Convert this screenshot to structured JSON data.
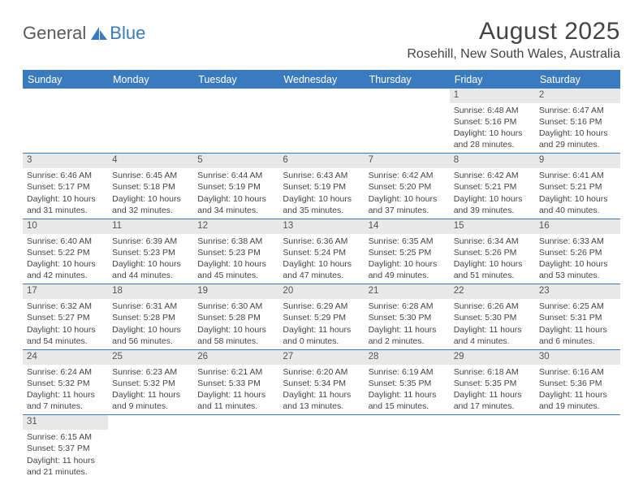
{
  "logo": {
    "part1": "General",
    "part2": "Blue"
  },
  "title": "August 2025",
  "location": "Rosehill, New South Wales, Australia",
  "colors": {
    "header_bg": "#3a7bbf",
    "header_fg": "#ffffff",
    "daynum_bg": "#e8e8e8",
    "cell_border": "#3a7bbf",
    "text": "#444444"
  },
  "weekdays": [
    "Sunday",
    "Monday",
    "Tuesday",
    "Wednesday",
    "Thursday",
    "Friday",
    "Saturday"
  ],
  "weeks": [
    [
      null,
      null,
      null,
      null,
      null,
      {
        "n": "1",
        "sr": "Sunrise: 6:48 AM",
        "ss": "Sunset: 5:16 PM",
        "dl1": "Daylight: 10 hours",
        "dl2": "and 28 minutes."
      },
      {
        "n": "2",
        "sr": "Sunrise: 6:47 AM",
        "ss": "Sunset: 5:16 PM",
        "dl1": "Daylight: 10 hours",
        "dl2": "and 29 minutes."
      }
    ],
    [
      {
        "n": "3",
        "sr": "Sunrise: 6:46 AM",
        "ss": "Sunset: 5:17 PM",
        "dl1": "Daylight: 10 hours",
        "dl2": "and 31 minutes."
      },
      {
        "n": "4",
        "sr": "Sunrise: 6:45 AM",
        "ss": "Sunset: 5:18 PM",
        "dl1": "Daylight: 10 hours",
        "dl2": "and 32 minutes."
      },
      {
        "n": "5",
        "sr": "Sunrise: 6:44 AM",
        "ss": "Sunset: 5:19 PM",
        "dl1": "Daylight: 10 hours",
        "dl2": "and 34 minutes."
      },
      {
        "n": "6",
        "sr": "Sunrise: 6:43 AM",
        "ss": "Sunset: 5:19 PM",
        "dl1": "Daylight: 10 hours",
        "dl2": "and 35 minutes."
      },
      {
        "n": "7",
        "sr": "Sunrise: 6:42 AM",
        "ss": "Sunset: 5:20 PM",
        "dl1": "Daylight: 10 hours",
        "dl2": "and 37 minutes."
      },
      {
        "n": "8",
        "sr": "Sunrise: 6:42 AM",
        "ss": "Sunset: 5:21 PM",
        "dl1": "Daylight: 10 hours",
        "dl2": "and 39 minutes."
      },
      {
        "n": "9",
        "sr": "Sunrise: 6:41 AM",
        "ss": "Sunset: 5:21 PM",
        "dl1": "Daylight: 10 hours",
        "dl2": "and 40 minutes."
      }
    ],
    [
      {
        "n": "10",
        "sr": "Sunrise: 6:40 AM",
        "ss": "Sunset: 5:22 PM",
        "dl1": "Daylight: 10 hours",
        "dl2": "and 42 minutes."
      },
      {
        "n": "11",
        "sr": "Sunrise: 6:39 AM",
        "ss": "Sunset: 5:23 PM",
        "dl1": "Daylight: 10 hours",
        "dl2": "and 44 minutes."
      },
      {
        "n": "12",
        "sr": "Sunrise: 6:38 AM",
        "ss": "Sunset: 5:23 PM",
        "dl1": "Daylight: 10 hours",
        "dl2": "and 45 minutes."
      },
      {
        "n": "13",
        "sr": "Sunrise: 6:36 AM",
        "ss": "Sunset: 5:24 PM",
        "dl1": "Daylight: 10 hours",
        "dl2": "and 47 minutes."
      },
      {
        "n": "14",
        "sr": "Sunrise: 6:35 AM",
        "ss": "Sunset: 5:25 PM",
        "dl1": "Daylight: 10 hours",
        "dl2": "and 49 minutes."
      },
      {
        "n": "15",
        "sr": "Sunrise: 6:34 AM",
        "ss": "Sunset: 5:26 PM",
        "dl1": "Daylight: 10 hours",
        "dl2": "and 51 minutes."
      },
      {
        "n": "16",
        "sr": "Sunrise: 6:33 AM",
        "ss": "Sunset: 5:26 PM",
        "dl1": "Daylight: 10 hours",
        "dl2": "and 53 minutes."
      }
    ],
    [
      {
        "n": "17",
        "sr": "Sunrise: 6:32 AM",
        "ss": "Sunset: 5:27 PM",
        "dl1": "Daylight: 10 hours",
        "dl2": "and 54 minutes."
      },
      {
        "n": "18",
        "sr": "Sunrise: 6:31 AM",
        "ss": "Sunset: 5:28 PM",
        "dl1": "Daylight: 10 hours",
        "dl2": "and 56 minutes."
      },
      {
        "n": "19",
        "sr": "Sunrise: 6:30 AM",
        "ss": "Sunset: 5:28 PM",
        "dl1": "Daylight: 10 hours",
        "dl2": "and 58 minutes."
      },
      {
        "n": "20",
        "sr": "Sunrise: 6:29 AM",
        "ss": "Sunset: 5:29 PM",
        "dl1": "Daylight: 11 hours",
        "dl2": "and 0 minutes."
      },
      {
        "n": "21",
        "sr": "Sunrise: 6:28 AM",
        "ss": "Sunset: 5:30 PM",
        "dl1": "Daylight: 11 hours",
        "dl2": "and 2 minutes."
      },
      {
        "n": "22",
        "sr": "Sunrise: 6:26 AM",
        "ss": "Sunset: 5:30 PM",
        "dl1": "Daylight: 11 hours",
        "dl2": "and 4 minutes."
      },
      {
        "n": "23",
        "sr": "Sunrise: 6:25 AM",
        "ss": "Sunset: 5:31 PM",
        "dl1": "Daylight: 11 hours",
        "dl2": "and 6 minutes."
      }
    ],
    [
      {
        "n": "24",
        "sr": "Sunrise: 6:24 AM",
        "ss": "Sunset: 5:32 PM",
        "dl1": "Daylight: 11 hours",
        "dl2": "and 7 minutes."
      },
      {
        "n": "25",
        "sr": "Sunrise: 6:23 AM",
        "ss": "Sunset: 5:32 PM",
        "dl1": "Daylight: 11 hours",
        "dl2": "and 9 minutes."
      },
      {
        "n": "26",
        "sr": "Sunrise: 6:21 AM",
        "ss": "Sunset: 5:33 PM",
        "dl1": "Daylight: 11 hours",
        "dl2": "and 11 minutes."
      },
      {
        "n": "27",
        "sr": "Sunrise: 6:20 AM",
        "ss": "Sunset: 5:34 PM",
        "dl1": "Daylight: 11 hours",
        "dl2": "and 13 minutes."
      },
      {
        "n": "28",
        "sr": "Sunrise: 6:19 AM",
        "ss": "Sunset: 5:35 PM",
        "dl1": "Daylight: 11 hours",
        "dl2": "and 15 minutes."
      },
      {
        "n": "29",
        "sr": "Sunrise: 6:18 AM",
        "ss": "Sunset: 5:35 PM",
        "dl1": "Daylight: 11 hours",
        "dl2": "and 17 minutes."
      },
      {
        "n": "30",
        "sr": "Sunrise: 6:16 AM",
        "ss": "Sunset: 5:36 PM",
        "dl1": "Daylight: 11 hours",
        "dl2": "and 19 minutes."
      }
    ],
    [
      {
        "n": "31",
        "sr": "Sunrise: 6:15 AM",
        "ss": "Sunset: 5:37 PM",
        "dl1": "Daylight: 11 hours",
        "dl2": "and 21 minutes."
      },
      null,
      null,
      null,
      null,
      null,
      null
    ]
  ]
}
